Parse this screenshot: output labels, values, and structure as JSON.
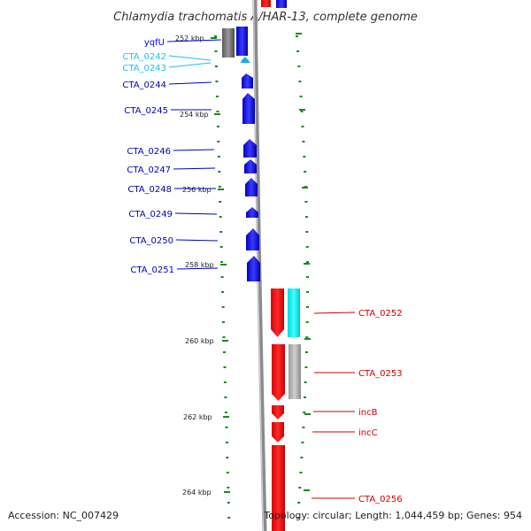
{
  "title": "Chlamydia trachomatis A/HAR-13, complete genome",
  "footer": {
    "accession": "Accession: NC_007429",
    "summary": "Topology: circular; Length: 1,044,459 bp; Genes: 954"
  },
  "colors": {
    "forward": "#0000ff",
    "reverse": "#ff0000",
    "aux_forward": "#1cc2f0",
    "aux_reverse": "#00ffff",
    "tick": "#1a8a1a",
    "backbone": "#808080",
    "pseudo": "#b0b0b0"
  },
  "scale": {
    "kbp_labels": [
      {
        "kbp": 252,
        "label": "252 kbp"
      },
      {
        "kbp": 254,
        "label": "254 kbp"
      },
      {
        "kbp": 256,
        "label": "256 kbp"
      },
      {
        "kbp": 258,
        "label": "258 kbp"
      },
      {
        "kbp": 260,
        "label": "260 kbp"
      },
      {
        "kbp": 262,
        "label": "262 kbp"
      },
      {
        "kbp": 264,
        "label": "264 kbp"
      }
    ]
  },
  "genes_forward": [
    {
      "label": "yqfU",
      "color": "blue"
    },
    {
      "label": "CTA_0242",
      "color": "cyan"
    },
    {
      "label": "CTA_0243",
      "color": "cyan"
    },
    {
      "label": "CTA_0244",
      "color": "blue"
    },
    {
      "label": "CTA_0245",
      "color": "blue"
    },
    {
      "label": "CTA_0246",
      "color": "blue"
    },
    {
      "label": "CTA_0247",
      "color": "blue"
    },
    {
      "label": "CTA_0248",
      "color": "blue"
    },
    {
      "label": "CTA_0249",
      "color": "blue"
    },
    {
      "label": "CTA_0250",
      "color": "blue"
    },
    {
      "label": "CTA_0251",
      "color": "blue"
    }
  ],
  "genes_reverse": [
    {
      "label": "CTA_0252"
    },
    {
      "label": "CTA_0253"
    },
    {
      "label": "incB"
    },
    {
      "label": "incC"
    },
    {
      "label": "CTA_0256"
    }
  ]
}
